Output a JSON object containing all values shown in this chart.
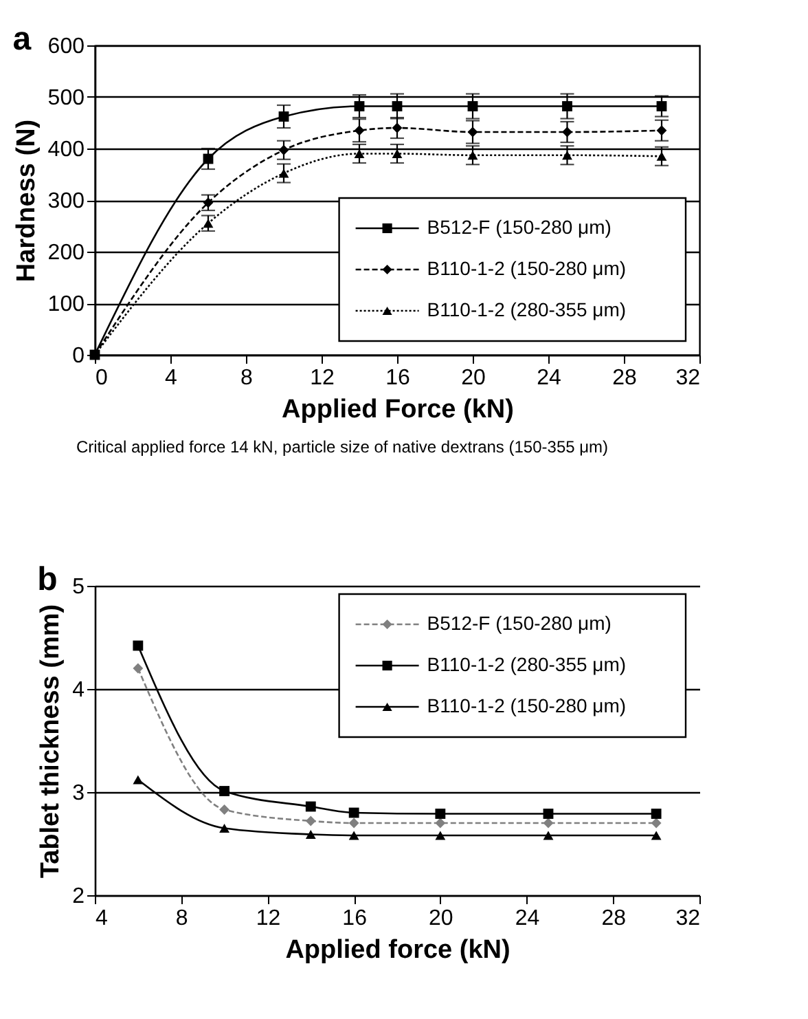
{
  "chart_data": [
    {
      "type": "line",
      "title": "a",
      "xlabel": "Applied Force (kN)",
      "ylabel": "Hardness (N)",
      "annotations": [
        "Critical applied force 14 kN, particle size of native dextrans (150-355 μm)"
      ],
      "x": [
        0,
        6,
        10,
        14,
        16,
        20,
        25,
        30
      ],
      "series": [
        {
          "name": "B512-F (150-280 μm)",
          "color": "#000000",
          "marker": "square",
          "line_style": "solid",
          "values": [
            0,
            380,
            462,
            482,
            482,
            482,
            482,
            482
          ],
          "errors": [
            null,
            20,
            22,
            22,
            24,
            24,
            24,
            20
          ]
        },
        {
          "name": "B110-1-2 (150-280 μm)",
          "color": "#000000",
          "marker": "diamond",
          "line_style": "dashed",
          "values": [
            0,
            295,
            397,
            435,
            440,
            432,
            432,
            435
          ],
          "errors": [
            null,
            15,
            18,
            22,
            20,
            22,
            20,
            20
          ]
        },
        {
          "name": "B110-1-2 (280-355 μm)",
          "color": "#000000",
          "marker": "triangle",
          "line_style": "dotted",
          "values": [
            0,
            255,
            352,
            390,
            390,
            387,
            387,
            385
          ],
          "errors": [
            null,
            15,
            18,
            18,
            18,
            18,
            18,
            18
          ]
        }
      ],
      "xlim": [
        0,
        32
      ],
      "xticks": [
        0,
        4,
        8,
        12,
        16,
        20,
        24,
        28,
        32
      ],
      "ylim": [
        0,
        600
      ],
      "yticks": [
        0,
        100,
        200,
        300,
        400,
        500,
        600
      ],
      "grid": "y",
      "legend": "bottom right"
    },
    {
      "type": "line",
      "title": "b",
      "xlabel": "Applied force (kN)",
      "ylabel": "Tablet thickness (mm)",
      "x": [
        6,
        10,
        14,
        16,
        20,
        25,
        30
      ],
      "series": [
        {
          "name": "B512-F (150-280 μm)",
          "color": "#808080",
          "marker": "diamond",
          "line_style": "dashed",
          "values": [
            4.2,
            2.83,
            2.72,
            2.7,
            2.7,
            2.7,
            2.7
          ]
        },
        {
          "name": "B110-1-2 (280-355 μm)",
          "color": "#000000",
          "marker": "square",
          "line_style": "solid",
          "values": [
            4.42,
            3.01,
            2.86,
            2.8,
            2.79,
            2.79,
            2.79
          ]
        },
        {
          "name": "B110-1-2 (150-280 μm)",
          "color": "#000000",
          "marker": "triangle",
          "line_style": "solid",
          "values": [
            3.12,
            2.65,
            2.59,
            2.58,
            2.58,
            2.58,
            2.58
          ]
        }
      ],
      "xlim": [
        4,
        32
      ],
      "xticks": [
        4,
        8,
        12,
        16,
        20,
        24,
        28,
        32
      ],
      "ylim": [
        2,
        5
      ],
      "yticks": [
        2,
        3,
        4,
        5
      ],
      "grid": "y",
      "legend": "top right"
    }
  ]
}
